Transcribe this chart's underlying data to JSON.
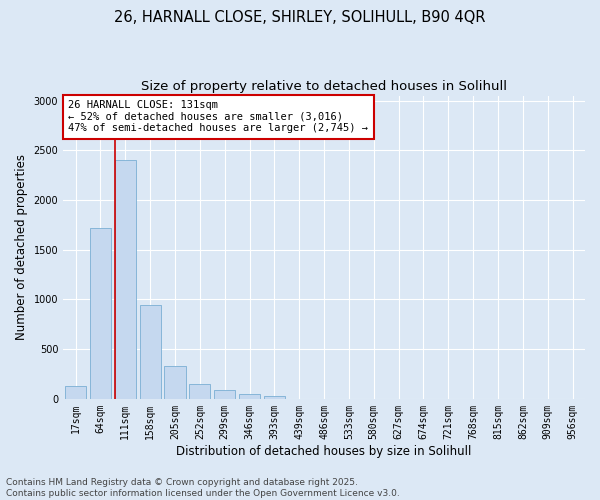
{
  "title_line1": "26, HARNALL CLOSE, SHIRLEY, SOLIHULL, B90 4QR",
  "title_line2": "Size of property relative to detached houses in Solihull",
  "xlabel": "Distribution of detached houses by size in Solihull",
  "ylabel": "Number of detached properties",
  "bin_labels": [
    "17sqm",
    "64sqm",
    "111sqm",
    "158sqm",
    "205sqm",
    "252sqm",
    "299sqm",
    "346sqm",
    "393sqm",
    "439sqm",
    "486sqm",
    "533sqm",
    "580sqm",
    "627sqm",
    "674sqm",
    "721sqm",
    "768sqm",
    "815sqm",
    "862sqm",
    "909sqm",
    "956sqm"
  ],
  "bar_values": [
    130,
    1720,
    2400,
    940,
    330,
    150,
    85,
    45,
    25,
    0,
    0,
    0,
    0,
    0,
    0,
    0,
    0,
    0,
    0,
    0,
    0
  ],
  "bar_color": "#c5d8ef",
  "bar_edgecolor": "#7aafd4",
  "vline_color": "#cc0000",
  "annotation_text": "26 HARNALL CLOSE: 131sqm\n← 52% of detached houses are smaller (3,016)\n47% of semi-detached houses are larger (2,745) →",
  "annotation_box_edgecolor": "#cc0000",
  "annotation_facecolor": "white",
  "ylim": [
    0,
    3050
  ],
  "yticks": [
    0,
    500,
    1000,
    1500,
    2000,
    2500,
    3000
  ],
  "background_color": "#dce8f5",
  "plot_bg_color": "#dce8f5",
  "grid_color": "#ffffff",
  "footer_line1": "Contains HM Land Registry data © Crown copyright and database right 2025.",
  "footer_line2": "Contains public sector information licensed under the Open Government Licence v3.0.",
  "title_fontsize": 10.5,
  "subtitle_fontsize": 9.5,
  "axis_label_fontsize": 8.5,
  "tick_fontsize": 7,
  "annotation_fontsize": 7.5,
  "footer_fontsize": 6.5
}
